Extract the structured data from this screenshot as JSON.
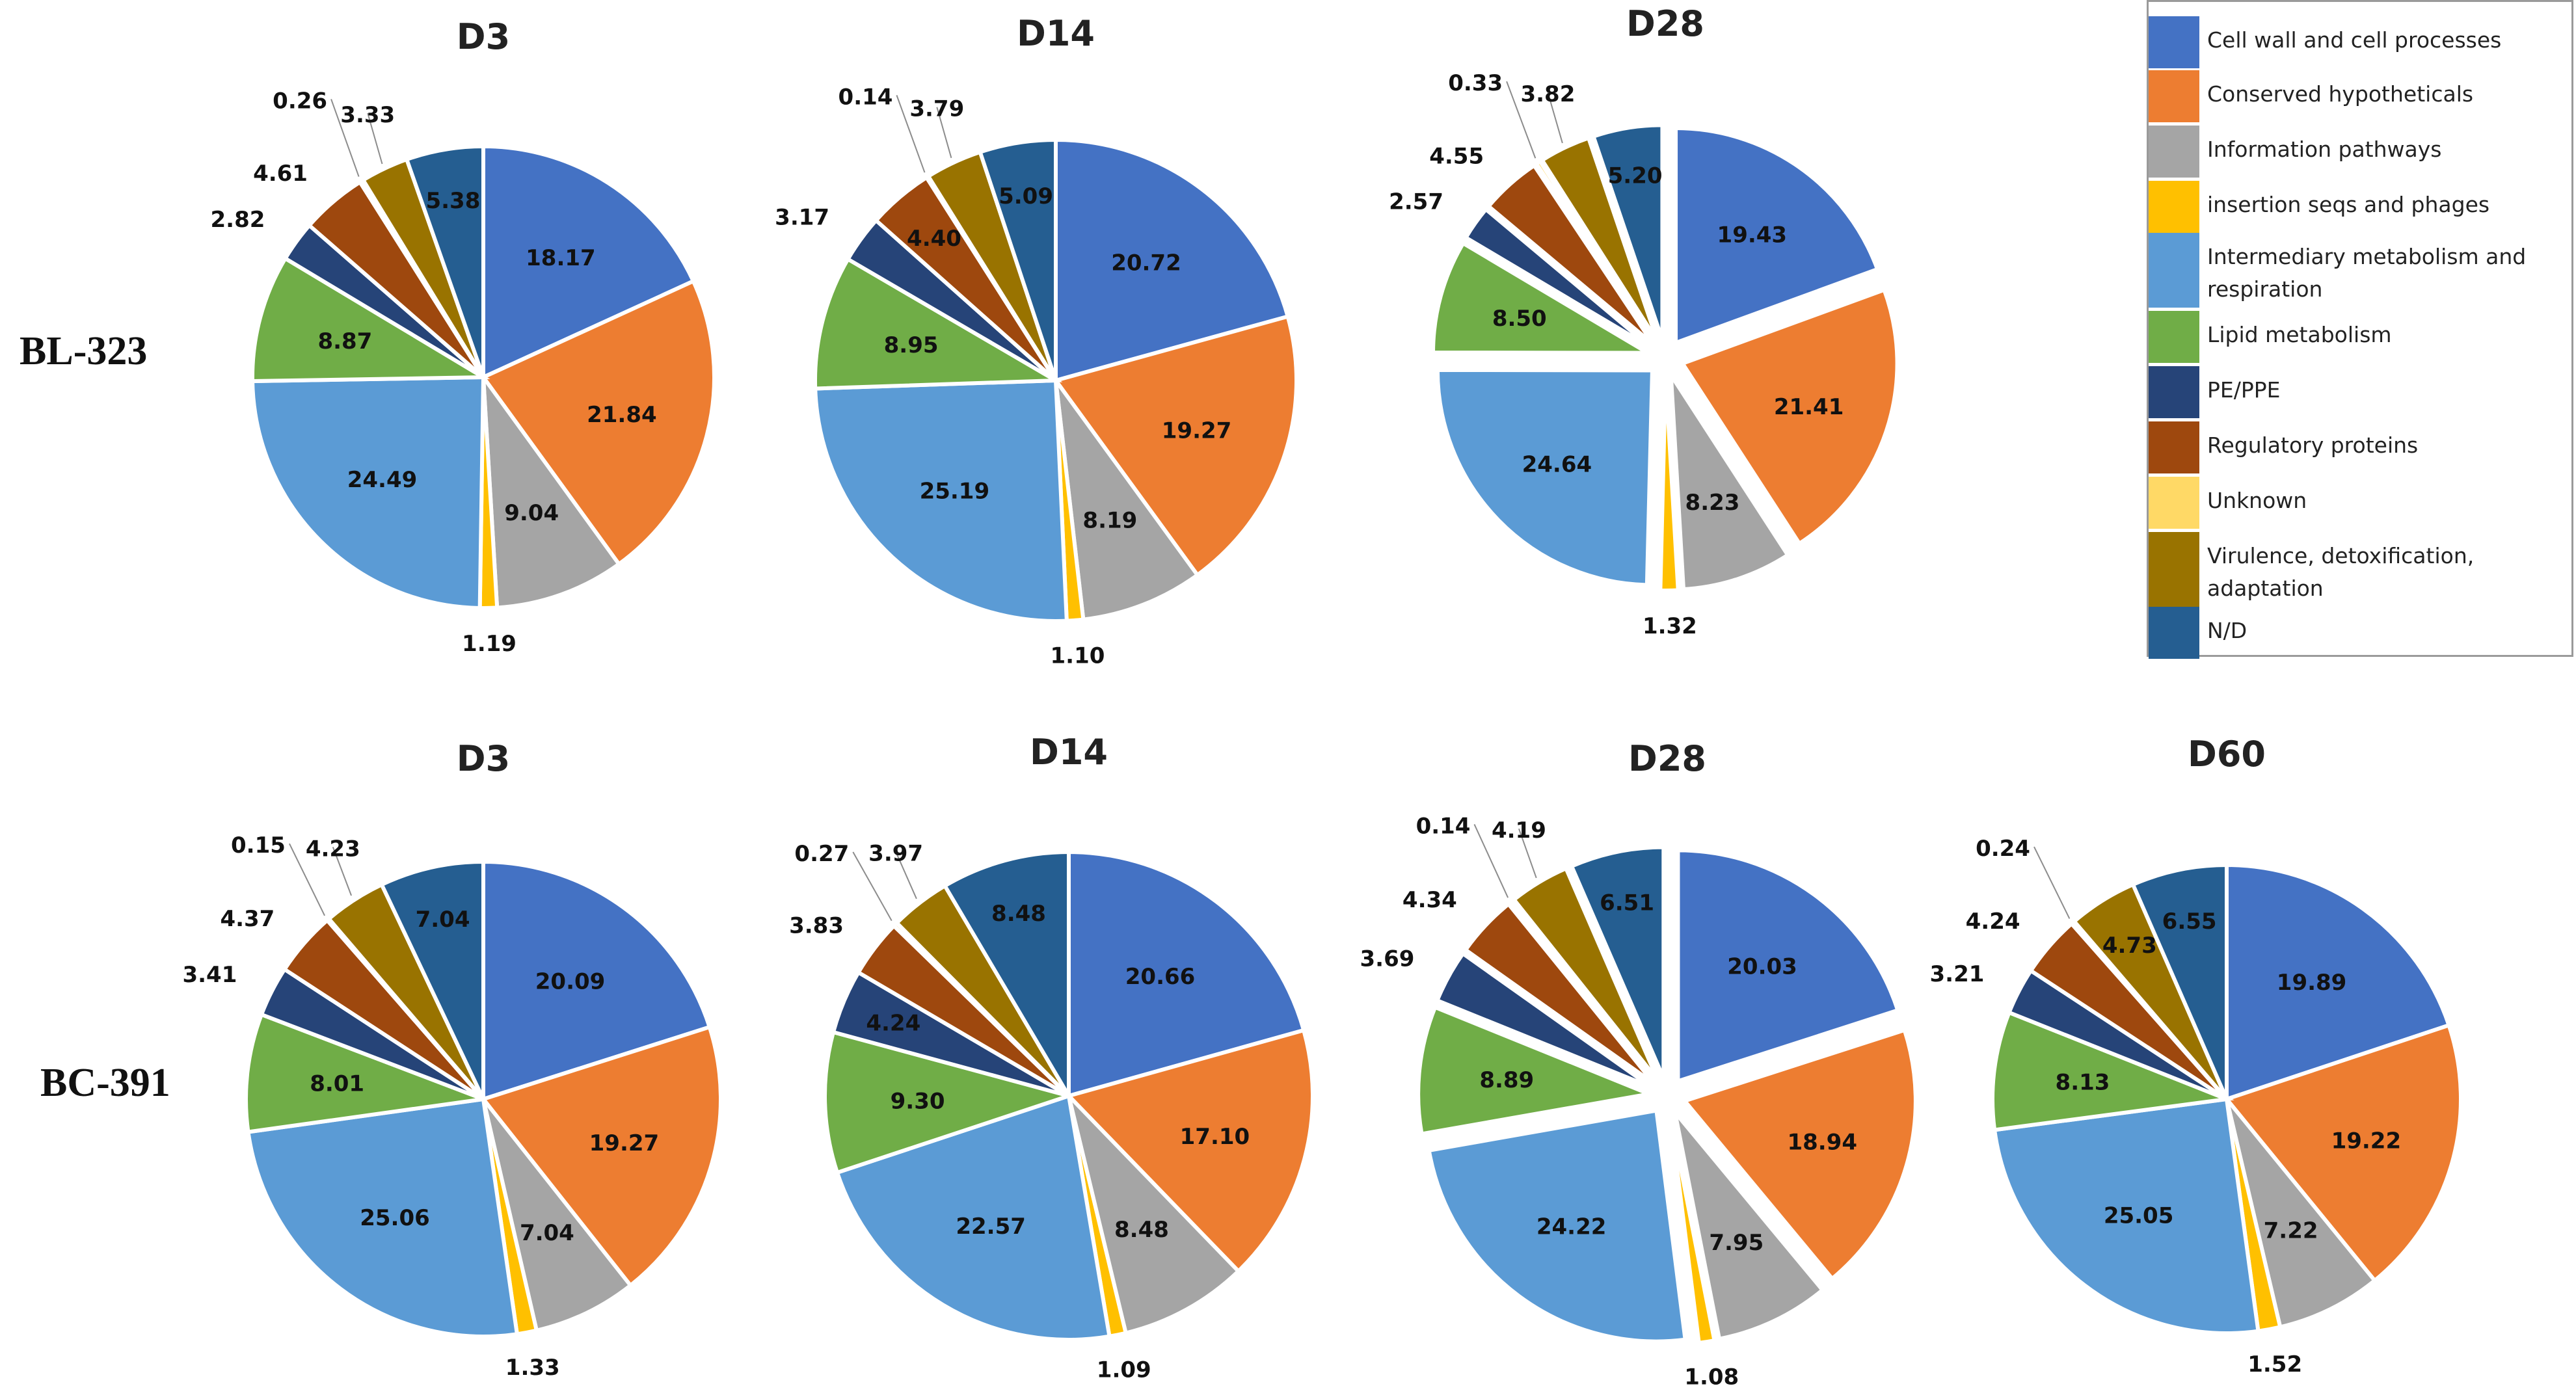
{
  "rows": [
    {
      "label": "BL-323"
    },
    {
      "label": "BC-391"
    }
  ],
  "legend": {
    "items": [
      {
        "label": "Cell wall and cell processes",
        "color": "#4472C4"
      },
      {
        "label": "Conserved hypotheticals",
        "color": "#ED7D31"
      },
      {
        "label": "Information pathways",
        "color": "#A5A5A5"
      },
      {
        "label": "insertion seqs and phages",
        "color": "#FFC000"
      },
      {
        "label": "Intermediary metabolism and respiration",
        "color": "#5B9BD5"
      },
      {
        "label": "Lipid metabolism",
        "color": "#70AD47"
      },
      {
        "label": "PE/PPE",
        "color": "#264478"
      },
      {
        "label": "Regulatory proteins",
        "color": "#9E480E"
      },
      {
        "label": "Unknown",
        "color": "#FFD966"
      },
      {
        "label": "Virulence, detoxification, adaptation",
        "color": "#997300"
      },
      {
        "label": "N/D",
        "color": "#255E91"
      }
    ]
  },
  "chart_data": [
    {
      "type": "pie",
      "row": "BL-323",
      "title": "D3",
      "exploded": false,
      "categories": [
        "Cell wall and cell processes",
        "Conserved hypotheticals",
        "Information pathways",
        "insertion seqs and phages",
        "Intermediary metabolism and respiration",
        "Lipid metabolism",
        "PE/PPE",
        "Regulatory proteins",
        "Unknown",
        "Virulence, detoxification, adaptation",
        "N/D"
      ],
      "values": [
        18.17,
        21.84,
        9.04,
        1.19,
        24.49,
        8.87,
        2.82,
        4.61,
        0.26,
        3.33,
        5.38
      ]
    },
    {
      "type": "pie",
      "row": "BL-323",
      "title": "D14",
      "exploded": false,
      "categories": [
        "Cell wall and cell processes",
        "Conserved hypotheticals",
        "Information pathways",
        "insertion seqs and phages",
        "Intermediary metabolism and respiration",
        "Lipid metabolism",
        "PE/PPE",
        "Regulatory proteins",
        "Unknown",
        "Virulence, detoxification, adaptation",
        "N/D"
      ],
      "values": [
        20.72,
        19.27,
        8.19,
        1.1,
        25.19,
        8.95,
        3.17,
        4.4,
        0.14,
        3.79,
        5.09
      ]
    },
    {
      "type": "pie",
      "row": "BL-323",
      "title": "D28",
      "exploded": true,
      "categories": [
        "Cell wall and cell processes",
        "Conserved hypotheticals",
        "Information pathways",
        "insertion seqs and phages",
        "Intermediary metabolism and respiration",
        "Lipid metabolism",
        "PE/PPE",
        "Regulatory proteins",
        "Unknown",
        "Virulence, detoxification, adaptation",
        "N/D"
      ],
      "values": [
        19.43,
        21.41,
        8.23,
        1.32,
        24.64,
        8.5,
        2.57,
        4.55,
        0.33,
        3.82,
        5.2
      ]
    },
    {
      "type": "pie",
      "row": "BC-391",
      "title": "D3",
      "exploded": false,
      "categories": [
        "Cell wall and cell processes",
        "Conserved hypotheticals",
        "Information pathways",
        "insertion seqs and phages",
        "Intermediary metabolism and respiration",
        "Lipid metabolism",
        "PE/PPE",
        "Regulatory proteins",
        "Unknown",
        "Virulence, detoxification, adaptation",
        "N/D"
      ],
      "values": [
        20.09,
        19.27,
        7.04,
        1.33,
        25.06,
        8.01,
        3.41,
        4.37,
        0.15,
        4.23,
        7.04
      ]
    },
    {
      "type": "pie",
      "row": "BC-391",
      "title": "D14",
      "exploded": false,
      "categories": [
        "Cell wall and cell processes",
        "Conserved hypotheticals",
        "Information pathways",
        "insertion seqs and phages",
        "Intermediary metabolism and respiration",
        "Lipid metabolism",
        "PE/PPE",
        "Regulatory proteins",
        "Unknown",
        "Virulence, detoxification, adaptation",
        "N/D"
      ],
      "values": [
        20.66,
        17.1,
        8.48,
        1.09,
        22.57,
        9.3,
        4.24,
        3.83,
        0.27,
        3.97,
        8.48
      ]
    },
    {
      "type": "pie",
      "row": "BC-391",
      "title": "D28",
      "exploded": true,
      "categories": [
        "Cell wall and cell processes",
        "Conserved hypotheticals",
        "Information pathways",
        "insertion seqs and phages",
        "Intermediary metabolism and respiration",
        "Lipid metabolism",
        "PE/PPE",
        "Regulatory proteins",
        "Unknown",
        "Virulence, detoxification, adaptation",
        "N/D"
      ],
      "values": [
        20.03,
        18.94,
        7.95,
        1.08,
        24.22,
        8.89,
        3.69,
        4.34,
        0.14,
        4.19,
        6.51
      ]
    },
    {
      "type": "pie",
      "row": "BC-391",
      "title": "D60",
      "exploded": false,
      "categories": [
        "Cell wall and cell processes",
        "Conserved hypotheticals",
        "Information pathways",
        "insertion seqs and phages",
        "Intermediary metabolism and respiration",
        "Lipid metabolism",
        "PE/PPE",
        "Regulatory proteins",
        "Unknown",
        "Virulence, detoxification, adaptation",
        "N/D"
      ],
      "values": [
        19.89,
        19.22,
        7.22,
        1.52,
        25.05,
        8.13,
        3.21,
        4.24,
        0.24,
        4.73,
        6.55
      ]
    }
  ]
}
